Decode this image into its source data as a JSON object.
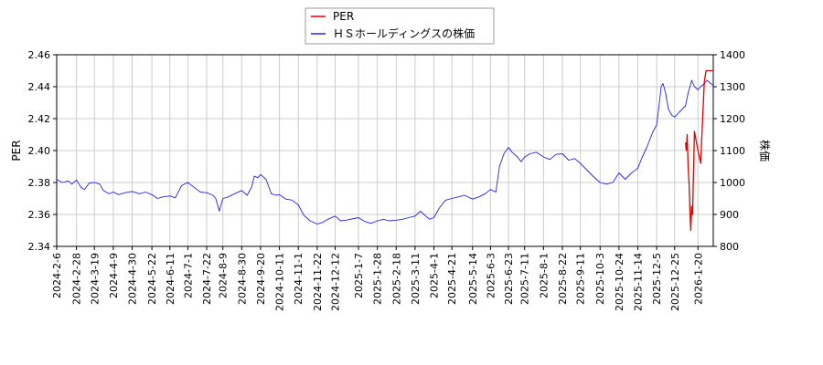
{
  "chart_data": {
    "type": "line",
    "legend": {
      "placement": "top-center",
      "entries": [
        {
          "name": "PER",
          "color": "#dd0000"
        },
        {
          "name": "ＨＳホールディングスの株価",
          "color": "#2222dd"
        }
      ]
    },
    "left_axis": {
      "label": "PER",
      "ylim": [
        2.34,
        2.46
      ],
      "ticks": [
        "2.34",
        "2.36",
        "2.38",
        "2.40",
        "2.42",
        "2.44",
        "2.46"
      ]
    },
    "right_axis": {
      "label": "株価",
      "ylim": [
        800,
        1400
      ],
      "ticks": [
        "800",
        "900",
        "1000",
        "1100",
        "1200",
        "1300",
        "1400"
      ]
    },
    "x_axis": {
      "range": [
        "2024-02-06",
        "2026-02-06"
      ],
      "ticks": [
        "2024-2-6",
        "2024-2-28",
        "2024-3-19",
        "2024-4-9",
        "2024-4-30",
        "2024-5-22",
        "2024-6-11",
        "2024-7-1",
        "2024-7-22",
        "2024-8-9",
        "2024-8-30",
        "2024-9-20",
        "2024-10-11",
        "2024-11-1",
        "2024-11-22",
        "2024-12-12",
        "2025-1-7",
        "2025-1-28",
        "2025-2-18",
        "2025-3-11",
        "2025-4-1",
        "2025-4-21",
        "2025-5-14",
        "2025-6-3",
        "2025-6-23",
        "2025-7-11",
        "2025-8-1",
        "2025-8-22",
        "2025-9-11",
        "2025-10-3",
        "2025-10-24",
        "2025-11-14",
        "2025-12-5",
        "2025-12-25",
        "2026-1-20"
      ]
    },
    "grid": true,
    "series": [
      {
        "name": "ＨＳホールディングスの株価",
        "axis": "right",
        "color": "#2222dd",
        "points": [
          [
            "2024-02-06",
            1010
          ],
          [
            "2024-02-12",
            1000
          ],
          [
            "2024-02-19",
            1005
          ],
          [
            "2024-02-23",
            995
          ],
          [
            "2024-02-28",
            1008
          ],
          [
            "2024-03-04",
            985
          ],
          [
            "2024-03-08",
            978
          ],
          [
            "2024-03-13",
            998
          ],
          [
            "2024-03-19",
            1000
          ],
          [
            "2024-03-25",
            995
          ],
          [
            "2024-03-29",
            975
          ],
          [
            "2024-04-04",
            965
          ],
          [
            "2024-04-09",
            970
          ],
          [
            "2024-04-15",
            962
          ],
          [
            "2024-04-22",
            968
          ],
          [
            "2024-04-30",
            972
          ],
          [
            "2024-05-08",
            965
          ],
          [
            "2024-05-15",
            970
          ],
          [
            "2024-05-22",
            962
          ],
          [
            "2024-05-28",
            950
          ],
          [
            "2024-06-03",
            955
          ],
          [
            "2024-06-11",
            958
          ],
          [
            "2024-06-17",
            952
          ],
          [
            "2024-06-24",
            990
          ],
          [
            "2024-07-01",
            1000
          ],
          [
            "2024-07-08",
            985
          ],
          [
            "2024-07-15",
            970
          ],
          [
            "2024-07-22",
            968
          ],
          [
            "2024-07-29",
            960
          ],
          [
            "2024-08-01",
            950
          ],
          [
            "2024-08-05",
            910
          ],
          [
            "2024-08-07",
            930
          ],
          [
            "2024-08-09",
            950
          ],
          [
            "2024-08-15",
            955
          ],
          [
            "2024-08-22",
            965
          ],
          [
            "2024-08-30",
            975
          ],
          [
            "2024-09-05",
            960
          ],
          [
            "2024-09-10",
            985
          ],
          [
            "2024-09-13",
            1020
          ],
          [
            "2024-09-17",
            1015
          ],
          [
            "2024-09-20",
            1025
          ],
          [
            "2024-09-26",
            1010
          ],
          [
            "2024-10-02",
            965
          ],
          [
            "2024-10-07",
            960
          ],
          [
            "2024-10-11",
            962
          ],
          [
            "2024-10-18",
            948
          ],
          [
            "2024-10-25",
            945
          ],
          [
            "2024-11-01",
            930
          ],
          [
            "2024-11-07",
            898
          ],
          [
            "2024-11-14",
            880
          ],
          [
            "2024-11-22",
            870
          ],
          [
            "2024-11-28",
            875
          ],
          [
            "2024-12-04",
            885
          ],
          [
            "2024-12-12",
            895
          ],
          [
            "2024-12-18",
            880
          ],
          [
            "2024-12-24",
            882
          ],
          [
            "2025-01-07",
            890
          ],
          [
            "2025-01-14",
            878
          ],
          [
            "2025-01-21",
            872
          ],
          [
            "2025-01-28",
            880
          ],
          [
            "2025-02-04",
            885
          ],
          [
            "2025-02-10",
            880
          ],
          [
            "2025-02-18",
            882
          ],
          [
            "2025-02-25",
            885
          ],
          [
            "2025-03-04",
            890
          ],
          [
            "2025-03-11",
            895
          ],
          [
            "2025-03-17",
            910
          ],
          [
            "2025-03-21",
            900
          ],
          [
            "2025-03-27",
            885
          ],
          [
            "2025-04-01",
            890
          ],
          [
            "2025-04-07",
            920
          ],
          [
            "2025-04-14",
            945
          ],
          [
            "2025-04-21",
            950
          ],
          [
            "2025-04-28",
            955
          ],
          [
            "2025-05-05",
            960
          ],
          [
            "2025-05-14",
            948
          ],
          [
            "2025-05-21",
            955
          ],
          [
            "2025-05-28",
            965
          ],
          [
            "2025-06-03",
            978
          ],
          [
            "2025-06-09",
            970
          ],
          [
            "2025-06-13",
            1050
          ],
          [
            "2025-06-18",
            1090
          ],
          [
            "2025-06-23",
            1110
          ],
          [
            "2025-06-27",
            1095
          ],
          [
            "2025-07-03",
            1080
          ],
          [
            "2025-07-07",
            1065
          ],
          [
            "2025-07-11",
            1080
          ],
          [
            "2025-07-17",
            1090
          ],
          [
            "2025-07-24",
            1095
          ],
          [
            "2025-08-01",
            1080
          ],
          [
            "2025-08-08",
            1072
          ],
          [
            "2025-08-15",
            1088
          ],
          [
            "2025-08-22",
            1090
          ],
          [
            "2025-08-29",
            1070
          ],
          [
            "2025-09-05",
            1075
          ],
          [
            "2025-09-11",
            1060
          ],
          [
            "2025-09-18",
            1040
          ],
          [
            "2025-09-25",
            1020
          ],
          [
            "2025-10-03",
            1000
          ],
          [
            "2025-10-10",
            995
          ],
          [
            "2025-10-17",
            1000
          ],
          [
            "2025-10-24",
            1030
          ],
          [
            "2025-10-31",
            1010
          ],
          [
            "2025-11-07",
            1030
          ],
          [
            "2025-11-14",
            1045
          ],
          [
            "2025-11-19",
            1080
          ],
          [
            "2025-11-24",
            1110
          ],
          [
            "2025-12-01",
            1160
          ],
          [
            "2025-12-05",
            1180
          ],
          [
            "2025-12-08",
            1250
          ],
          [
            "2025-12-10",
            1300
          ],
          [
            "2025-12-12",
            1310
          ],
          [
            "2025-12-15",
            1280
          ],
          [
            "2025-12-18",
            1230
          ],
          [
            "2025-12-22",
            1210
          ],
          [
            "2025-12-25",
            1205
          ],
          [
            "2025-12-30",
            1220
          ],
          [
            "2026-01-06",
            1240
          ],
          [
            "2026-01-09",
            1280
          ],
          [
            "2026-01-13",
            1320
          ],
          [
            "2026-01-16",
            1300
          ],
          [
            "2026-01-20",
            1290
          ],
          [
            "2026-01-23",
            1300
          ],
          [
            "2026-01-27",
            1310
          ],
          [
            "2026-01-30",
            1320
          ],
          [
            "2026-02-03",
            1310
          ],
          [
            "2026-02-06",
            1305
          ]
        ]
      },
      {
        "name": "PER",
        "axis": "left",
        "color": "#dd0000",
        "points": [
          [
            "2026-01-06",
            2.405
          ],
          [
            "2026-01-07",
            2.4
          ],
          [
            "2026-01-08",
            2.41
          ],
          [
            "2026-01-09",
            2.39
          ],
          [
            "2026-01-10",
            2.38
          ],
          [
            "2026-01-11",
            2.362
          ],
          [
            "2026-01-12",
            2.35
          ],
          [
            "2026-01-13",
            2.365
          ],
          [
            "2026-01-14",
            2.36
          ],
          [
            "2026-01-16",
            2.412
          ],
          [
            "2026-01-20",
            2.4
          ],
          [
            "2026-01-23",
            2.392
          ],
          [
            "2026-01-27",
            2.443
          ],
          [
            "2026-01-29",
            2.45
          ],
          [
            "2026-02-03",
            2.45
          ],
          [
            "2026-02-06",
            2.45
          ]
        ]
      }
    ]
  }
}
